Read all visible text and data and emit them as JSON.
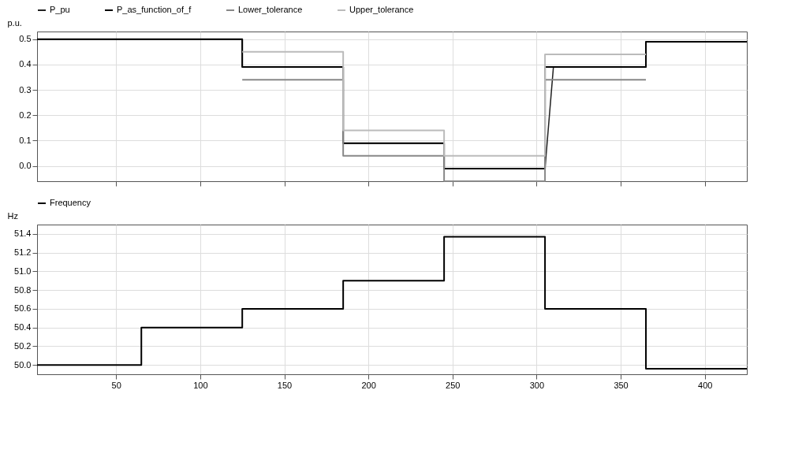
{
  "chart_data": [
    {
      "type": "step",
      "ylabel": "p.u.",
      "legend": "top",
      "grid": true,
      "tick_labels": "y",
      "xlim": [
        3,
        425
      ],
      "xticks": [
        50,
        100,
        150,
        200,
        250,
        300,
        350,
        400
      ],
      "ylim": [
        -0.06,
        0.53
      ],
      "yticks": [
        {
          "value": 0,
          "label": "0.0"
        },
        0.1,
        0.2,
        0.3,
        0.4,
        0.5
      ],
      "series": [
        {
          "name": "P_pu",
          "type": "line",
          "color": "#222222",
          "x": [
            3,
            125,
            125,
            185,
            185,
            245,
            245,
            305,
            310,
            365,
            365,
            425
          ],
          "values": [
            0.5,
            0.5,
            0.39,
            0.39,
            0.09,
            0.09,
            -0.01,
            -0.01,
            0.39,
            0.39,
            0.49,
            0.49
          ]
        },
        {
          "name": "P_as_function_of_f",
          "color": "#000000",
          "x": [
            3,
            125,
            185,
            245,
            305,
            365,
            425
          ],
          "values": [
            0.5,
            0.39,
            0.09,
            -0.01,
            0.39,
            0.49,
            0.49
          ]
        },
        {
          "name": "Lower_tolerance",
          "color": "#888888",
          "x": [
            125,
            185,
            245,
            305,
            365
          ],
          "values": [
            0.34,
            0.04,
            -0.06,
            0.34,
            0.34
          ]
        },
        {
          "name": "Upper_tolerance",
          "color": "#bbbbbb",
          "x": [
            125,
            185,
            245,
            305,
            365
          ],
          "values": [
            0.45,
            0.14,
            0.04,
            0.44,
            0.44
          ]
        }
      ]
    },
    {
      "type": "step",
      "ylabel": "Hz",
      "legend": "top",
      "grid": true,
      "xlim": [
        3,
        425
      ],
      "xticks": [
        50,
        100,
        150,
        200,
        250,
        300,
        350,
        400
      ],
      "ylim": [
        49.9,
        51.5
      ],
      "yticks": [
        {
          "value": 50,
          "label": "50.0"
        },
        50.2,
        50.4,
        50.6,
        50.8,
        {
          "value": 51,
          "label": "51.0"
        },
        51.2,
        51.4
      ],
      "series": [
        {
          "name": "Frequency",
          "color": "#000000",
          "x": [
            3,
            65,
            125,
            185,
            245,
            305,
            365,
            425
          ],
          "values": [
            50.0,
            50.4,
            50.6,
            50.9,
            51.37,
            50.6,
            49.96,
            49.96
          ]
        }
      ]
    }
  ]
}
